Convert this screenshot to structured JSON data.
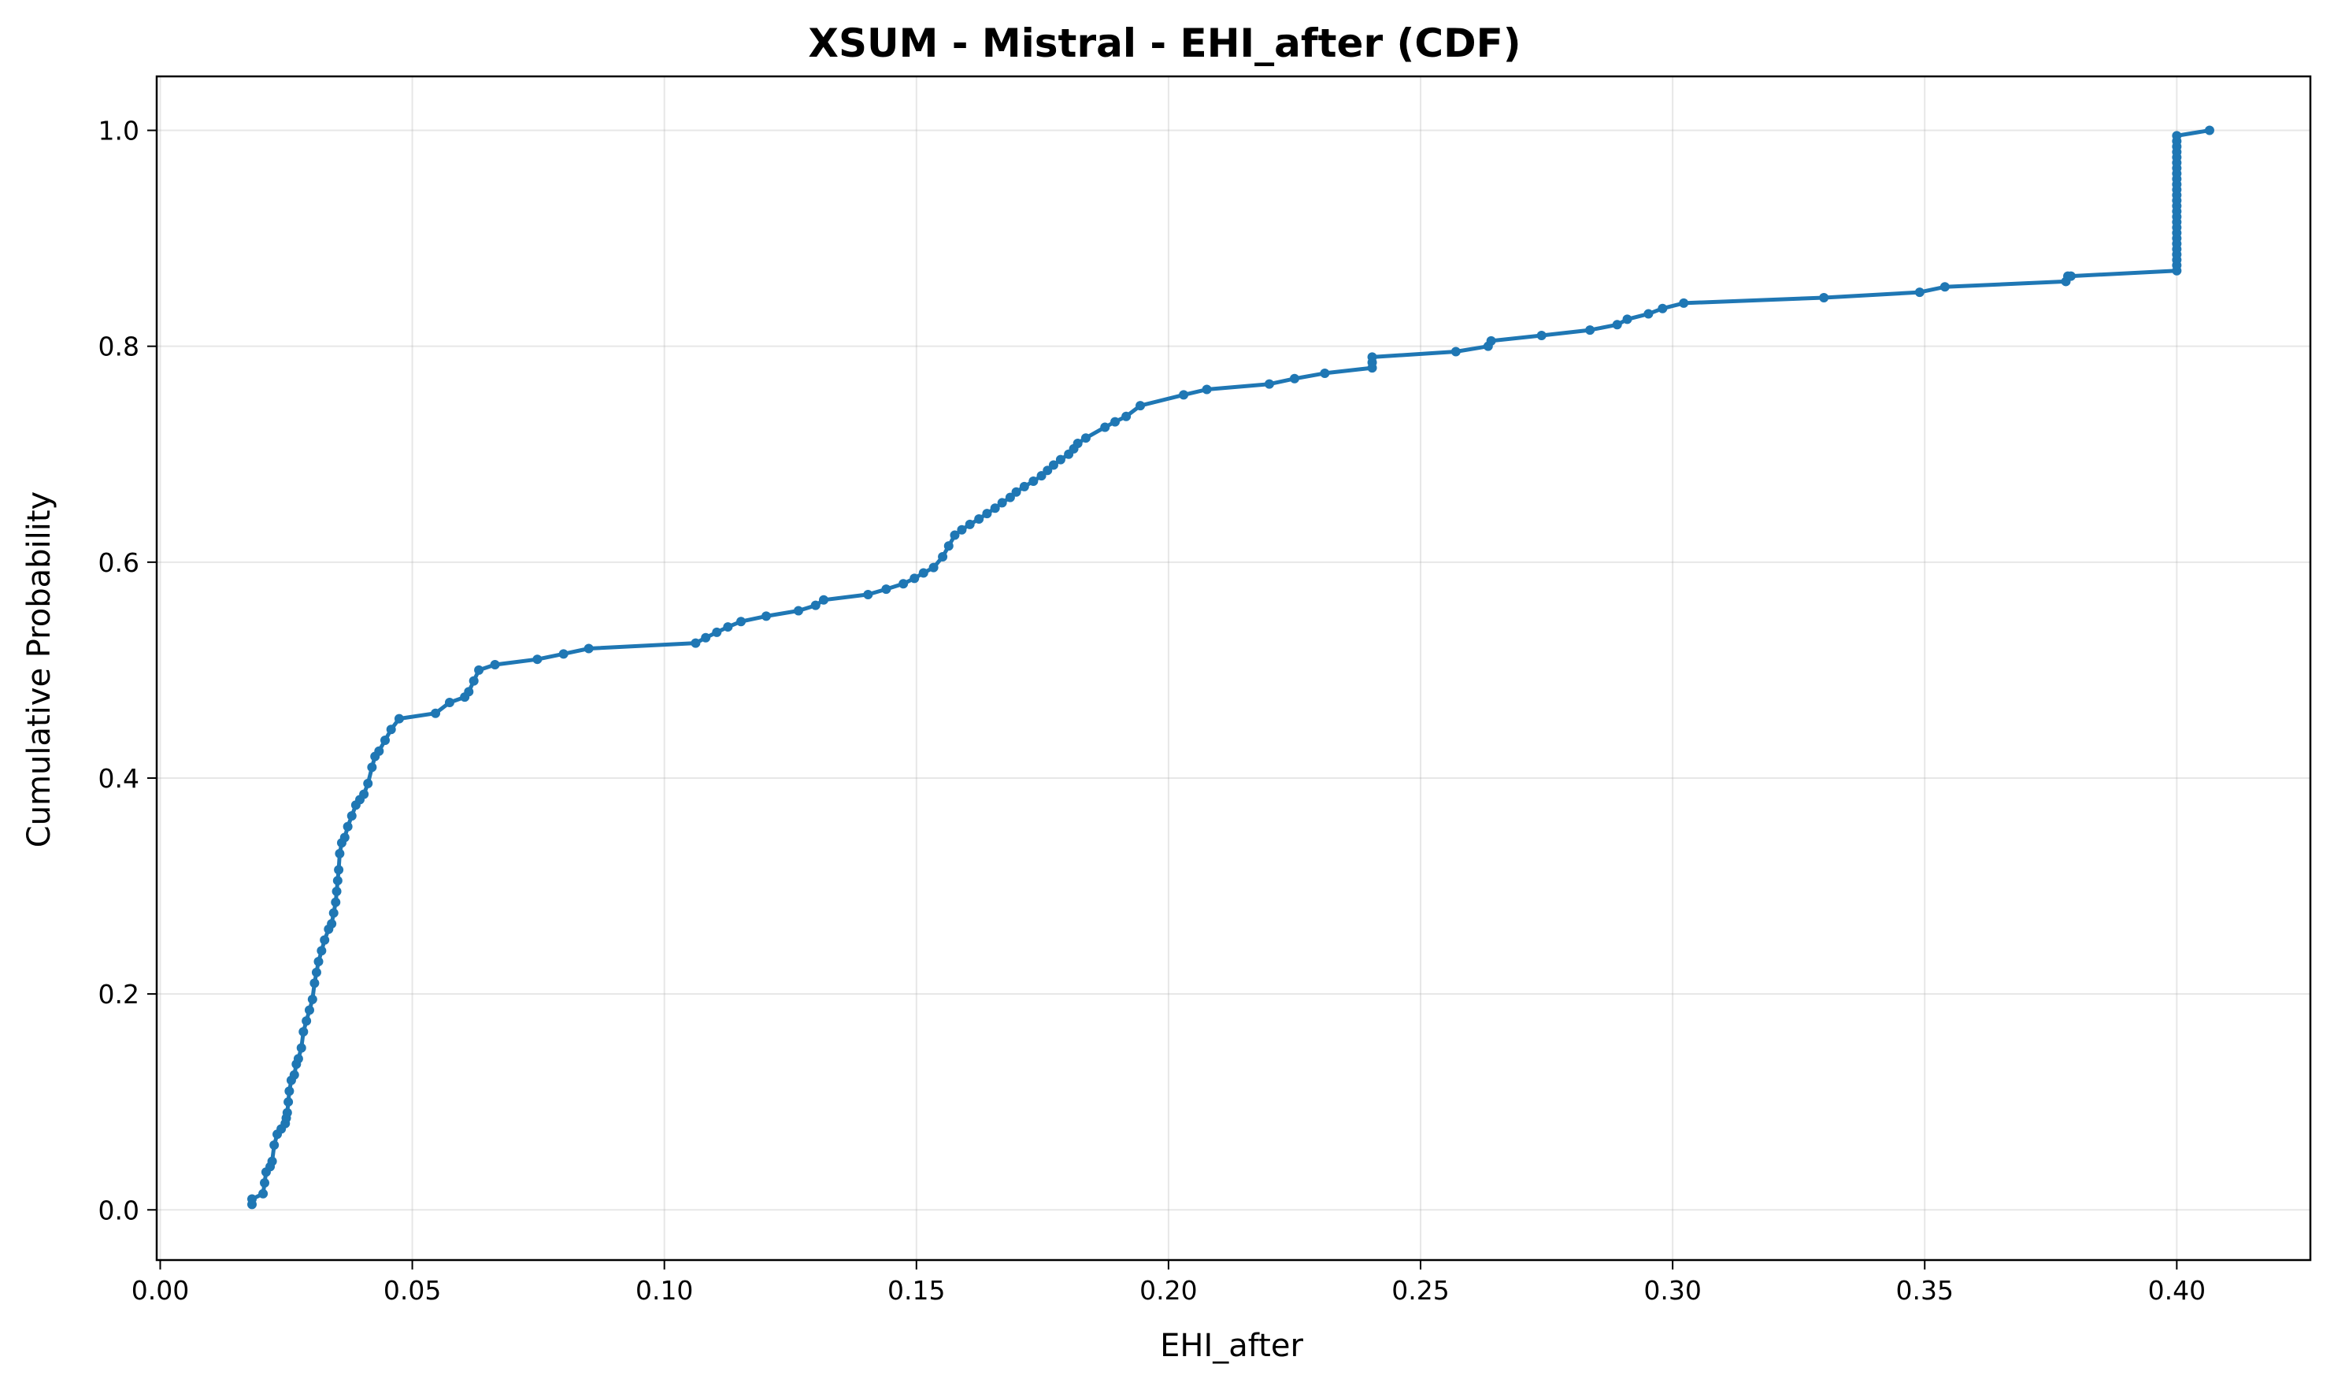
{
  "chart_data": {
    "type": "line",
    "title": "XSUM - Mistral - EHI_after (CDF)",
    "xlabel": "EHI_after",
    "ylabel": "Cumulative Probability",
    "xlim": [
      -0.0007,
      0.4265
    ],
    "ylim": [
      -0.0465,
      1.05
    ],
    "xticks": [
      0.0,
      0.05,
      0.1,
      0.15,
      0.2,
      0.25,
      0.3,
      0.35,
      0.4
    ],
    "xtick_labels": [
      "0.00",
      "0.05",
      "0.10",
      "0.15",
      "0.20",
      "0.25",
      "0.30",
      "0.35",
      "0.40"
    ],
    "yticks": [
      0.0,
      0.2,
      0.4,
      0.6,
      0.8,
      1.0
    ],
    "ytick_labels": [
      "0.0",
      "0.2",
      "0.4",
      "0.6",
      "0.8",
      "1.0"
    ],
    "grid": true,
    "color": "#1f77b4",
    "series": [
      {
        "x": [
          0.0182,
          0.0182,
          0.0204,
          0.0207,
          0.021,
          0.0218,
          0.0222,
          0.0226,
          0.0232,
          0.024,
          0.0248,
          0.025,
          0.0252,
          0.0254,
          0.0256,
          0.026,
          0.0266,
          0.027,
          0.0274,
          0.028,
          0.0284,
          0.029,
          0.0296,
          0.0302,
          0.0306,
          0.031,
          0.0314,
          0.032,
          0.0326,
          0.0334,
          0.034,
          0.0344,
          0.0348,
          0.035,
          0.0352,
          0.0354,
          0.0356,
          0.036,
          0.0366,
          0.0372,
          0.038,
          0.0388,
          0.0396,
          0.0404,
          0.0412,
          0.042,
          0.0426,
          0.0434,
          0.0446,
          0.0458,
          0.0474,
          0.0546,
          0.0574,
          0.0604,
          0.0612,
          0.0622,
          0.0632,
          0.0664,
          0.0748,
          0.08,
          0.085,
          0.1062,
          0.1082,
          0.1104,
          0.1126,
          0.1152,
          0.1202,
          0.1266,
          0.13,
          0.1316,
          0.1404,
          0.144,
          0.1474,
          0.1496,
          0.1514,
          0.1534,
          0.1552,
          0.1564,
          0.1576,
          0.159,
          0.1606,
          0.1624,
          0.164,
          0.1656,
          0.167,
          0.1686,
          0.1698,
          0.1714,
          0.1732,
          0.1748,
          0.176,
          0.1772,
          0.1786,
          0.1802,
          0.1812,
          0.182,
          0.1836,
          0.1874,
          0.1894,
          0.1916,
          0.1944,
          0.203,
          0.2076,
          0.22,
          0.225,
          0.231,
          0.2404,
          0.2404,
          0.2404,
          0.257,
          0.2634,
          0.264,
          0.274,
          0.2836,
          0.289,
          0.291,
          0.2952,
          0.298,
          0.3022,
          0.33,
          0.349,
          0.354,
          0.378,
          0.3784,
          0.379,
          0.4,
          0.4,
          0.4,
          0.4,
          0.4,
          0.4,
          0.4,
          0.4,
          0.4,
          0.4,
          0.4,
          0.4,
          0.4,
          0.4,
          0.4,
          0.4,
          0.4,
          0.4,
          0.4,
          0.4,
          0.4,
          0.4,
          0.4,
          0.4,
          0.4,
          0.4,
          0.4065
        ],
        "y": [
          0.005,
          0.01,
          0.015,
          0.025,
          0.035,
          0.04,
          0.045,
          0.06,
          0.07,
          0.075,
          0.08,
          0.085,
          0.09,
          0.1,
          0.11,
          0.12,
          0.125,
          0.135,
          0.14,
          0.15,
          0.165,
          0.175,
          0.185,
          0.195,
          0.21,
          0.22,
          0.23,
          0.24,
          0.25,
          0.26,
          0.265,
          0.275,
          0.285,
          0.295,
          0.305,
          0.315,
          0.33,
          0.34,
          0.345,
          0.355,
          0.365,
          0.375,
          0.38,
          0.385,
          0.395,
          0.41,
          0.42,
          0.425,
          0.435,
          0.445,
          0.455,
          0.46,
          0.47,
          0.475,
          0.48,
          0.49,
          0.5,
          0.505,
          0.51,
          0.515,
          0.52,
          0.525,
          0.53,
          0.535,
          0.54,
          0.545,
          0.55,
          0.555,
          0.56,
          0.565,
          0.57,
          0.575,
          0.58,
          0.585,
          0.59,
          0.595,
          0.605,
          0.615,
          0.625,
          0.63,
          0.635,
          0.64,
          0.645,
          0.65,
          0.655,
          0.66,
          0.665,
          0.67,
          0.675,
          0.68,
          0.685,
          0.69,
          0.695,
          0.7,
          0.705,
          0.71,
          0.715,
          0.725,
          0.73,
          0.735,
          0.745,
          0.755,
          0.76,
          0.765,
          0.77,
          0.775,
          0.78,
          0.785,
          0.79,
          0.795,
          0.8,
          0.805,
          0.81,
          0.815,
          0.82,
          0.825,
          0.83,
          0.835,
          0.84,
          0.845,
          0.85,
          0.855,
          0.86,
          0.865,
          0.865,
          0.87,
          0.875,
          0.88,
          0.885,
          0.89,
          0.895,
          0.9,
          0.905,
          0.91,
          0.915,
          0.92,
          0.925,
          0.93,
          0.935,
          0.94,
          0.945,
          0.95,
          0.955,
          0.96,
          0.965,
          0.97,
          0.975,
          0.98,
          0.985,
          0.99,
          0.995,
          1.0
        ]
      }
    ]
  }
}
